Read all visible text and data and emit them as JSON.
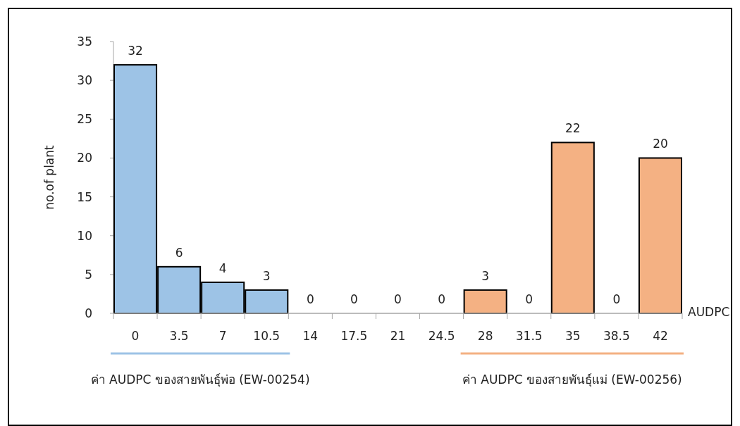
{
  "chart_data": {
    "type": "bar",
    "ylabel": "no.of plant",
    "xlabel": "AUDPC",
    "categories": [
      "0",
      "3.5",
      "7",
      "10.5",
      "14",
      "17.5",
      "21",
      "24.5",
      "28",
      "31.5",
      "35",
      "38.5",
      "42"
    ],
    "values": [
      32,
      6,
      4,
      3,
      0,
      0,
      0,
      0,
      3,
      0,
      22,
      0,
      20
    ],
    "colors": [
      "#9dc3e6",
      "#9dc3e6",
      "#9dc3e6",
      "#9dc3e6",
      null,
      null,
      null,
      null,
      "#f4b183",
      "#f4b183",
      "#f4b183",
      "#f4b183",
      "#f4b183"
    ],
    "ylim": [
      0,
      35
    ],
    "yticks": [
      0,
      5,
      10,
      15,
      20,
      25,
      30,
      35
    ],
    "data_labels": true,
    "grid": false,
    "annotations": [
      "ค่า AUDPC ของสายพันธุ์พ่อ (EW-00254)",
      "ค่า AUDPC ของสายพันธุ์แม่ (EW-00256)"
    ]
  }
}
